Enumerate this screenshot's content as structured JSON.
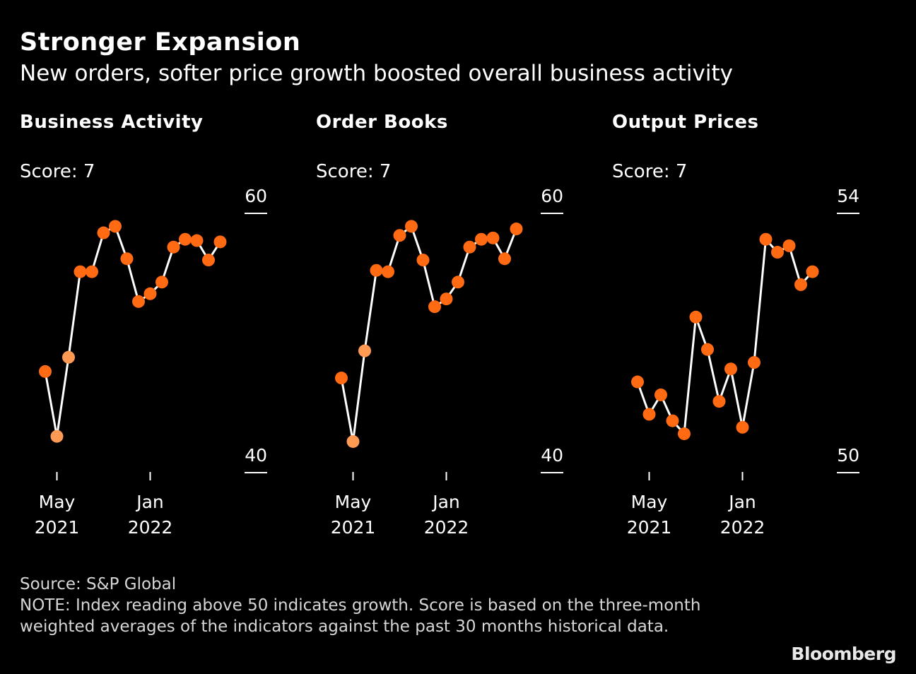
{
  "header": {
    "title": "Stronger Expansion",
    "subtitle": "New orders, softer price growth boosted overall business activity"
  },
  "footer": {
    "source": "Source: S&P Global",
    "note": "NOTE: Index reading above 50 indicates growth. Score is based on the three-month weighted averages of the indicators against the past 30 months historical data.",
    "brand": "Bloomberg"
  },
  "colors": {
    "background": "#000000",
    "line": "#ffffff",
    "marker": "#ff6a13",
    "marker_highlight": "#ff9a55",
    "text": "#ffffff"
  },
  "chart_data": [
    {
      "type": "line",
      "title": "Business Activity",
      "score_label": "Score: 7",
      "x": [
        "2021-04",
        "2021-05",
        "2021-06",
        "2021-07",
        "2021-08",
        "2021-09",
        "2021-10",
        "2021-11",
        "2021-12",
        "2022-01",
        "2022-02",
        "2022-03",
        "2022-04",
        "2022-05",
        "2022-06",
        "2022-07"
      ],
      "y": [
        47.8,
        42.8,
        48.9,
        55.5,
        55.5,
        58.5,
        59.0,
        56.5,
        53.2,
        53.8,
        54.7,
        57.4,
        58.0,
        57.9,
        56.4,
        57.8
      ],
      "highlight_points": [
        1,
        2
      ],
      "x_tick_labels": [
        {
          "x": "2021-05",
          "label": [
            "May",
            "2021"
          ]
        },
        {
          "x": "2022-01",
          "label": [
            "Jan",
            "2022"
          ]
        }
      ],
      "y_ticks": [
        40,
        60
      ],
      "ylim": [
        40,
        60
      ]
    },
    {
      "type": "line",
      "title": "Order Books",
      "score_label": "Score: 7",
      "x": [
        "2021-04",
        "2021-05",
        "2021-06",
        "2021-07",
        "2021-08",
        "2021-09",
        "2021-10",
        "2021-11",
        "2021-12",
        "2022-01",
        "2022-02",
        "2022-03",
        "2022-04",
        "2022-05",
        "2022-06",
        "2022-07"
      ],
      "y": [
        47.3,
        42.4,
        49.4,
        55.6,
        55.5,
        58.3,
        59.0,
        56.4,
        52.8,
        53.4,
        54.7,
        57.4,
        58.0,
        58.1,
        56.5,
        58.8
      ],
      "highlight_points": [
        1,
        2
      ],
      "x_tick_labels": [
        {
          "x": "2021-05",
          "label": [
            "May",
            "2021"
          ]
        },
        {
          "x": "2022-01",
          "label": [
            "Jan",
            "2022"
          ]
        }
      ],
      "y_ticks": [
        40,
        60
      ],
      "ylim": [
        40,
        60
      ]
    },
    {
      "type": "line",
      "title": "Output Prices",
      "score_label": "Score: 7",
      "x": [
        "2021-04",
        "2021-05",
        "2021-06",
        "2021-07",
        "2021-08",
        "2021-09",
        "2021-10",
        "2021-11",
        "2021-12",
        "2022-01",
        "2022-02",
        "2022-03",
        "2022-04",
        "2022-05",
        "2022-06",
        "2022-07"
      ],
      "y": [
        51.4,
        50.9,
        51.2,
        50.8,
        50.6,
        52.4,
        51.9,
        51.1,
        51.6,
        50.7,
        51.7,
        53.6,
        53.4,
        53.5,
        52.9,
        53.1
      ],
      "highlight_points": [],
      "x_tick_labels": [
        {
          "x": "2021-05",
          "label": [
            "May",
            "2021"
          ]
        },
        {
          "x": "2022-01",
          "label": [
            "Jan",
            "2022"
          ]
        }
      ],
      "y_ticks": [
        50,
        54
      ],
      "ylim": [
        50,
        54
      ]
    }
  ]
}
